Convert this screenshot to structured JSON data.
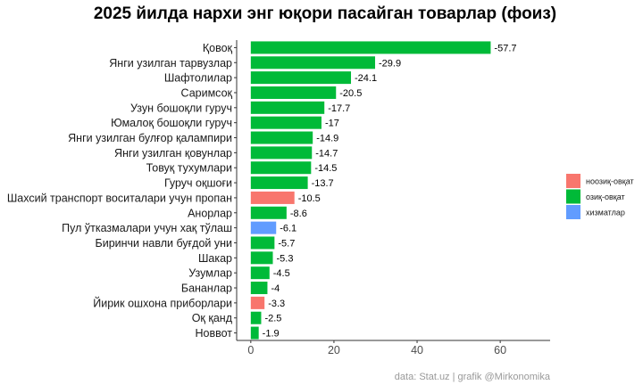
{
  "chart_data": {
    "type": "bar",
    "orientation": "horizontal",
    "title": "2025 йилда нархи энг юқори пасайган товарлар (фоиз)",
    "caption": "data: Stat.uz | grafik @Mirkonomika",
    "categories": [
      "Қовоқ",
      "Янги узилган тарвузлар",
      "Шафтолилар",
      "Саримсоқ",
      "Узун бошоқли гуруч",
      "Юмалоқ бошоқли гуруч",
      "Янги узилган булғор қалампири",
      "Янги узилган қовунлар",
      "Товуқ тухумлари",
      "Гуруч оқшоғи",
      "Шахсий транспорт воситалари учун пропан",
      "Анорлар",
      "Пул ўтказмалари учун хақ тўлаш",
      "Биринчи навли буғдой уни",
      "Шакар",
      "Узумлар",
      "Бананлар",
      "Йирик ошхона приборлари",
      "Оқ қанд",
      "Новвот"
    ],
    "values": [
      57.7,
      29.9,
      24.1,
      20.5,
      17.7,
      17,
      14.9,
      14.7,
      14.5,
      13.7,
      10.5,
      8.6,
      6.1,
      5.7,
      5.3,
      4.5,
      4,
      3.3,
      2.5,
      1.9
    ],
    "data_labels": [
      "-57.7",
      "-29.9",
      "-24.1",
      "-20.5",
      "-17.7",
      "-17",
      "-14.9",
      "-14.7",
      "-14.5",
      "-13.7",
      "-10.5",
      "-8.6",
      "-6.1",
      "-5.7",
      "-5.3",
      "-4.5",
      "-4",
      "-3.3",
      "-2.5",
      "-1.9"
    ],
    "groups": [
      "озиқ-овқат",
      "озиқ-овқат",
      "озиқ-овқат",
      "озиқ-овқат",
      "озиқ-овқат",
      "озиқ-овқат",
      "озиқ-овқат",
      "озиқ-овқат",
      "озиқ-овқат",
      "озиқ-овқат",
      "ноозиқ-овқат",
      "озиқ-овқат",
      "хизматлар",
      "озиқ-овқат",
      "озиқ-овқат",
      "озиқ-овқат",
      "озиқ-овқат",
      "ноозиқ-овқат",
      "озиқ-овқат",
      "озиқ-овқат"
    ],
    "legend": [
      {
        "name": "ноозиқ-овқат",
        "color": "#F8766D"
      },
      {
        "name": "озиқ-овқат",
        "color": "#00BA38"
      },
      {
        "name": "хизматлар",
        "color": "#619CFF"
      }
    ],
    "legend_position": "right",
    "xlim": [
      -3.4,
      72
    ],
    "xticks": [
      0,
      20,
      40,
      60
    ],
    "grid": false
  }
}
